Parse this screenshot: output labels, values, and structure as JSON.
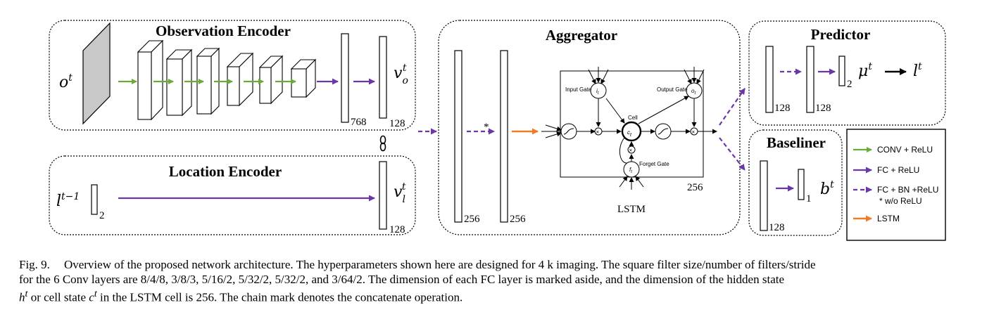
{
  "sections": {
    "obs": "Observation Encoder",
    "loc": "Location Encoder",
    "agg": "Aggregator",
    "pred": "Predictor",
    "base": "Baseliner"
  },
  "dims": {
    "obs_fc1": "768",
    "obs_fc2": "128",
    "loc_in": "2",
    "loc_fc": "128",
    "agg_fc1": "256",
    "agg_fc2": "256",
    "lstm_dim": "256",
    "pred_fc1": "128",
    "pred_fc2": "128",
    "pred_out": "2",
    "base_fc": "128",
    "base_out": "1"
  },
  "math": {
    "ot": "o",
    "ot_sup": "t",
    "vo": "v",
    "vo_sub": "o",
    "vo_sup": "t",
    "lt1": "l",
    "lt1_sup": "t−1",
    "vl": "v",
    "vl_sub": "l",
    "vl_sup": "t",
    "mu": "μ",
    "mu_sup": "t",
    "lt": "l",
    "lt_sup": "t",
    "bt": "b",
    "bt_sup": "t",
    "star": "*"
  },
  "lstm": {
    "name": "LSTM",
    "input_gate": "Input Gate",
    "output_gate": "Output Gate",
    "cell": "Cell",
    "forget_gate": "Forget Gate",
    "it": "i",
    "it_sub": "t",
    "ot": "o",
    "ot_sub": "t",
    "ct": "c",
    "ct_sub": "t",
    "ft": "f",
    "ft_sub": "t"
  },
  "legend": [
    {
      "label": "CONV + ReLU",
      "color": "#6aaa3a",
      "style": "solid"
    },
    {
      "label": "FC + ReLU",
      "color": "#6b36a8",
      "style": "solid"
    },
    {
      "label": "FC + BN +ReLU",
      "color": "#6b36a8",
      "style": "dashed"
    },
    {
      "label": "* w/o ReLU",
      "color": "",
      "style": "none"
    },
    {
      "label": "LSTM",
      "color": "#ee7a2b",
      "style": "solid"
    }
  ],
  "caption": {
    "fig": "Fig. 9.",
    "line1": "Overview of the proposed network architecture. The hyperparameters shown here are designed for 4 k imaging. The square filter size/number of filters/stride",
    "line2": "for the 6 Conv layers are 8/4/8, 3/8/3, 5/16/2, 5/32/2, 5/32/2, and 3/64/2. The dimension of each FC layer is marked aside, and the dimension of the hidden state",
    "line3a": "h",
    "line3a_sup": "t",
    "line3b": " or cell state ",
    "line3c": "c",
    "line3c_sup": "t",
    "line3d": " in the LSTM cell is 256. The chain mark denotes the concatenate operation."
  },
  "colors": {
    "green": "#6aaa3a",
    "purple": "#6b36a8",
    "orange": "#ee7a2b",
    "conv_front": "#ffffff",
    "input_gray": "#c8c8c8"
  }
}
